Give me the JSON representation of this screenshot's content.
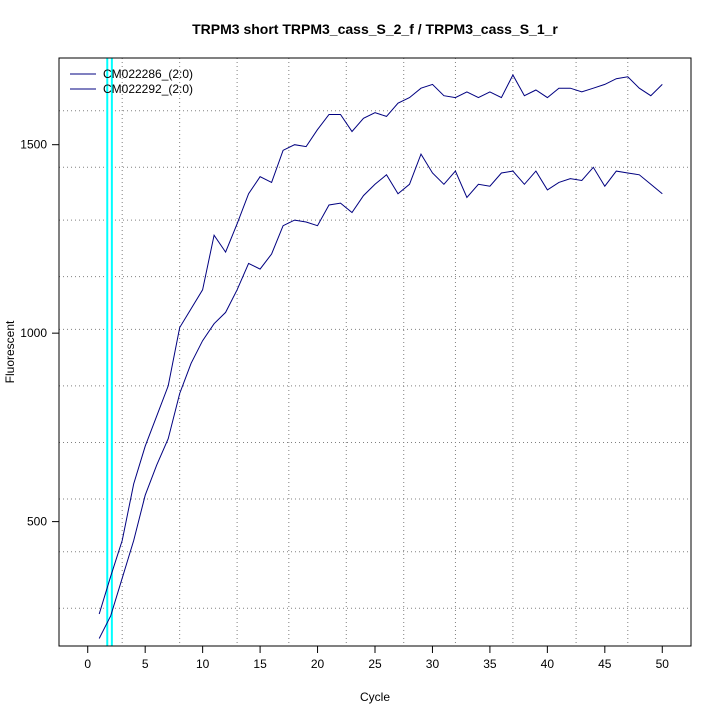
{
  "chart_data": {
    "type": "line",
    "title": "TRPM3 short TRPM3_cass_S_2_f / TRPM3_cass_S_1_r",
    "xlabel": "Cycle",
    "ylabel": "Fluorescent",
    "xlim": [
      -2.5,
      52.5
    ],
    "ylim": [
      170,
      1730
    ],
    "x_ticks": [
      0,
      5,
      10,
      15,
      20,
      25,
      30,
      35,
      40,
      45,
      50
    ],
    "y_ticks": [
      500,
      1000,
      1500
    ],
    "x_grid": [
      3,
      8,
      13,
      17.5,
      22.5,
      27.5,
      32,
      37,
      42.5,
      47
    ],
    "y_grid": [
      270,
      420,
      560,
      710,
      860,
      1010,
      1150,
      1300,
      1440,
      1590
    ],
    "grid": true,
    "legend_position": "top-left",
    "threshold_lines": [
      1.7,
      2.1
    ],
    "threshold_color": "#00ffff",
    "line_color": "#000080",
    "x": [
      1,
      2,
      3,
      4,
      5,
      6,
      7,
      8,
      9,
      10,
      11,
      12,
      13,
      14,
      15,
      16,
      17,
      18,
      19,
      20,
      21,
      22,
      23,
      24,
      25,
      26,
      27,
      28,
      29,
      30,
      31,
      32,
      33,
      34,
      35,
      36,
      37,
      38,
      39,
      40,
      41,
      42,
      43,
      44,
      45,
      46,
      47,
      48,
      49,
      50
    ],
    "series": [
      {
        "name": "CM022286_(2:0)",
        "values": [
          255,
          355,
          450,
          600,
          700,
          780,
          860,
          1015,
          1065,
          1115,
          1260,
          1215,
          1290,
          1370,
          1415,
          1400,
          1485,
          1500,
          1495,
          1540,
          1580,
          1580,
          1535,
          1570,
          1585,
          1575,
          1610,
          1625,
          1650,
          1660,
          1630,
          1625,
          1640,
          1625,
          1640,
          1625,
          1685,
          1630,
          1645,
          1625,
          1650,
          1650,
          1640,
          1650,
          1660,
          1675,
          1680,
          1650,
          1630,
          1660
        ]
      },
      {
        "name": "CM022292_(2:0)",
        "values": [
          190,
          250,
          350,
          450,
          570,
          650,
          720,
          840,
          920,
          980,
          1025,
          1055,
          1115,
          1185,
          1170,
          1210,
          1285,
          1300,
          1295,
          1285,
          1340,
          1345,
          1320,
          1365,
          1395,
          1420,
          1370,
          1395,
          1475,
          1425,
          1395,
          1430,
          1360,
          1395,
          1390,
          1425,
          1430,
          1395,
          1430,
          1380,
          1400,
          1410,
          1405,
          1440,
          1390,
          1430,
          1425,
          1420,
          1395,
          1370
        ]
      }
    ]
  }
}
